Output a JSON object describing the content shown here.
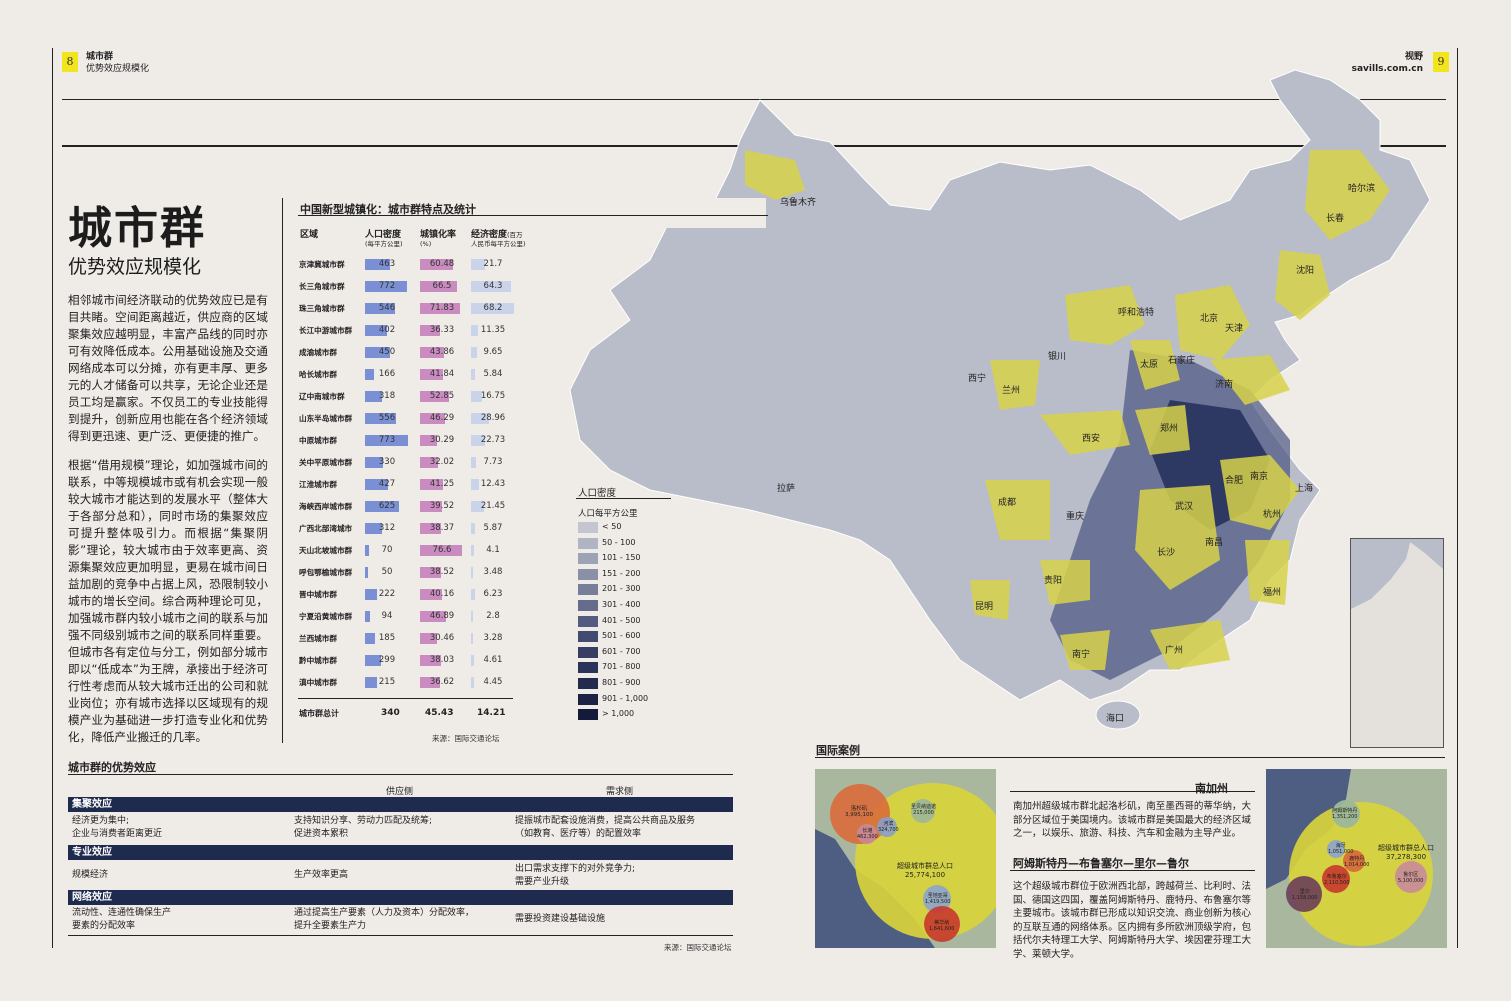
{
  "header": {
    "left_page_number": "8",
    "left_section": "城市群",
    "left_subsection": "优势效应规模化",
    "right_section": "视野",
    "right_site": "savills.com.cn",
    "right_page_number": "9"
  },
  "article": {
    "title": "城市群",
    "subtitle": "优势效应规模化",
    "paragraph_1": "相邻城市间经济联动的优势效应已是有目共睹。空间距离越近，供应商的区域聚集效应越明显，丰富产品线的同时亦可有效降低成本。公用基础设施及交通网络成本可以分摊，亦有更丰厚、更多元的人才储备可以共享，无论企业还是员工均是赢家。不仅员工的专业技能得到提升，创新应用也能在各个经济领域得到更迅速、更广泛、更便捷的推广。",
    "paragraph_2": "根据“借用规模”理论，如加强城市间的联系，中等规模城市或有机会实现一般较大城市才能达到的发展水平（整体大于各部分总和），同时市场的集聚效应可提升整体吸引力。而根据“集聚阴影”理论，较大城市由于效率更高、资源集聚效应更加明显，更易在城市间日益加剧的竞争中占据上风，恐限制较小城市的增长空间。综合两种理论可见，加强城市群内较小城市之间的联系与加强不同级别城市之间的联系同样重要。但城市各有定位与分工，例如部分城市即以“低成本”为王牌，承接出于经济可行性考虑而从较大城市迁出的公司和就业岗位；亦有城市选择以区域现有的规模产业为基础进一步打造专业化和优势化，降低产业搬迁的几率。"
  },
  "stats_table": {
    "title": "中国新型城镇化：城市群特点及统计",
    "col_region": "区域",
    "col_density": "人口密度",
    "col_density_unit": "(每平方公里)",
    "col_urban": "城镇化率",
    "col_urban_unit": "(%)",
    "col_econ": "经济密度",
    "col_econ_unit_a": "(百万",
    "col_econ_unit_b": "人民币每平方公里)",
    "rows": [
      {
        "name": "京津冀城市群",
        "density": "463",
        "urban": "60.48",
        "econ": "21.7",
        "d": 463,
        "u": 60.48,
        "e": 21.7
      },
      {
        "name": "长三角城市群",
        "density": "772",
        "urban": "66.5",
        "econ": "64.3",
        "d": 772,
        "u": 66.5,
        "e": 64.3
      },
      {
        "name": "珠三角城市群",
        "density": "546",
        "urban": "71.83",
        "econ": "68.2",
        "d": 546,
        "u": 71.83,
        "e": 68.2
      },
      {
        "name": "长江中游城市群",
        "density": "402",
        "urban": "36.33",
        "econ": "11.35",
        "d": 402,
        "u": 36.33,
        "e": 11.35
      },
      {
        "name": "成渝城市群",
        "density": "450",
        "urban": "43.86",
        "econ": "9.65",
        "d": 450,
        "u": 43.86,
        "e": 9.65
      },
      {
        "name": "哈长城市群",
        "density": "166",
        "urban": "41.84",
        "econ": "5.84",
        "d": 166,
        "u": 41.84,
        "e": 5.84
      },
      {
        "name": "辽中南城市群",
        "density": "318",
        "urban": "52.85",
        "econ": "16.75",
        "d": 318,
        "u": 52.85,
        "e": 16.75
      },
      {
        "name": "山东半岛城市群",
        "density": "556",
        "urban": "46.29",
        "econ": "28.96",
        "d": 556,
        "u": 46.29,
        "e": 28.96
      },
      {
        "name": "中原城市群",
        "density": "773",
        "urban": "30.29",
        "econ": "22.73",
        "d": 773,
        "u": 30.29,
        "e": 22.73
      },
      {
        "name": "关中平原城市群",
        "density": "330",
        "urban": "32.02",
        "econ": "7.73",
        "d": 330,
        "u": 32.02,
        "e": 7.73
      },
      {
        "name": "江淮城市群",
        "density": "427",
        "urban": "41.25",
        "econ": "12.43",
        "d": 427,
        "u": 41.25,
        "e": 12.43
      },
      {
        "name": "海峡西岸城市群",
        "density": "625",
        "urban": "39.52",
        "econ": "21.45",
        "d": 625,
        "u": 39.52,
        "e": 21.45
      },
      {
        "name": "广西北部湾城市",
        "density": "312",
        "urban": "38.37",
        "econ": "5.87",
        "d": 312,
        "u": 38.37,
        "e": 5.87
      },
      {
        "name": "天山北坡城市群",
        "density": "70",
        "urban": "76.6",
        "econ": "4.1",
        "d": 70,
        "u": 76.6,
        "e": 4.1
      },
      {
        "name": "呼包鄂榆城市群",
        "density": "50",
        "urban": "38.52",
        "econ": "3.48",
        "d": 50,
        "u": 38.52,
        "e": 3.48
      },
      {
        "name": "晋中城市群",
        "density": "222",
        "urban": "40.16",
        "econ": "6.23",
        "d": 222,
        "u": 40.16,
        "e": 6.23
      },
      {
        "name": "宁夏沿黄城市群",
        "density": "94",
        "urban": "46.89",
        "econ": "2.8",
        "d": 94,
        "u": 46.89,
        "e": 2.8
      },
      {
        "name": "兰西城市群",
        "density": "185",
        "urban": "30.46",
        "econ": "3.28",
        "d": 185,
        "u": 30.46,
        "e": 3.28
      },
      {
        "name": "黔中城市群",
        "density": "299",
        "urban": "38.03",
        "econ": "4.61",
        "d": 299,
        "u": 38.03,
        "e": 4.61
      },
      {
        "name": "滇中城市群",
        "density": "215",
        "urban": "36.62",
        "econ": "4.45",
        "d": 215,
        "u": 36.62,
        "e": 4.45
      }
    ],
    "total_label": "城市群总计",
    "total_density": "340",
    "total_urban": "45.43",
    "total_econ": "14.21",
    "source": "来源：国际交通论坛",
    "colors": {
      "density": "#7b8fd4",
      "urban": "#c98bc0",
      "econ": "#c9d3ea"
    }
  },
  "legend": {
    "title": "人口密度",
    "unit": "人口每平方公里",
    "items": [
      {
        "label": "< 50",
        "color": "#c3c6d1"
      },
      {
        "label": "50 - 100",
        "color": "#b0b4c3"
      },
      {
        "label": "101 - 150",
        "color": "#9da2b5"
      },
      {
        "label": "151 - 200",
        "color": "#8a90a8"
      },
      {
        "label": "201 - 300",
        "color": "#777e9a"
      },
      {
        "label": "301 - 400",
        "color": "#656c8c"
      },
      {
        "label": "401 - 500",
        "color": "#535b7e"
      },
      {
        "label": "501 - 600",
        "color": "#434b70"
      },
      {
        "label": "601 - 700",
        "color": "#363e64"
      },
      {
        "label": "701 - 800",
        "color": "#2b3358"
      },
      {
        "label": "801 - 900",
        "color": "#222a4e"
      },
      {
        "label": "901 - 1,000",
        "color": "#1b2245"
      },
      {
        "label": "> 1,000",
        "color": "#141a3a"
      }
    ]
  },
  "map": {
    "cities": [
      "乌鲁木齐",
      "哈尔滨",
      "长春",
      "沈阳",
      "呼和浩特",
      "北京",
      "天津",
      "银川",
      "太原",
      "石家庄",
      "西宁",
      "兰州",
      "济南",
      "西安",
      "郑州",
      "拉萨",
      "合肥",
      "南京",
      "上海",
      "成都",
      "重庆",
      "武汉",
      "杭州",
      "长沙",
      "南昌",
      "贵阳",
      "福州",
      "昆明",
      "南宁",
      "广州",
      "海口"
    ],
    "colors": {
      "land": "#b9bcc9",
      "cluster": "#d7d24a",
      "dense": "#1e2a55"
    }
  },
  "advantages": {
    "title": "城市群的优势效应",
    "col_supply": "供应侧",
    "col_demand": "需求侧",
    "sections": [
      {
        "name": "集聚效应",
        "left": "经济更为集中;\n企业与消费者距离更近",
        "supply": "支持知识分享、劳动力匹配及统筹;\n促进资本累积",
        "demand": "提振城市配套设施消费，提高公共商品及服务\n（如教育、医疗等）的配置效率"
      },
      {
        "name": "专业效应",
        "left": "规模经济",
        "supply": "生产效率更高",
        "demand": "出口需求支撑下的对外竞争力;\n需要产业升级"
      },
      {
        "name": "网络效应",
        "left": "流动性、连通性确保生产\n要素的分配效率",
        "supply": "通过提高生产要素（人力及资本）分配效率，\n提升全要素生产力",
        "demand": "需要投资建设基础设施"
      }
    ],
    "source": "来源：国际交通论坛"
  },
  "international": {
    "title": "国际案例",
    "socal_title": "南加州",
    "socal_body": "南加州超级城市群北起洛杉矶，南至墨西哥的蒂华纳，大部分区域位于美国境内。该城市群是美国最大的经济区域之一，以娱乐、旅游、科技、汽车和金融为主导产业。",
    "ams_title": "阿姆斯特丹—布鲁塞尔—里尔—鲁尔",
    "ams_body": "这个超级城市群位于欧洲西北部，跨越荷兰、比利时、法国、德国这四国，覆盖阿姆斯特丹、鹿特丹、布鲁塞尔等主要城市。该城市群已形成以知识交流、商业创新为核心的互联互通的网络体系。区内拥有多所欧洲顶级学府，包括代尔夫特理工大学、阿姆斯特丹大学、埃因霍芬理工大学、莱顿大学。",
    "socal_total_label": "超级城市群总人口",
    "socal_total": "25,774,100",
    "ams_total_label": "超级城市群总人口",
    "ams_total": "37,278,300",
    "socal_bubbles": [
      {
        "name": "洛杉矶",
        "value": "3,995,100"
      },
      {
        "name": "圣贝纳迪诺",
        "value": "215,000"
      },
      {
        "name": "长滩",
        "value": "462,300"
      },
      {
        "name": "河滨",
        "value": "324,700"
      },
      {
        "name": "圣地亚哥",
        "value": "1,419,500"
      },
      {
        "name": "蒂华纳",
        "value": "1,641,600"
      }
    ],
    "ams_bubbles": [
      {
        "name": "阿姆斯特丹",
        "value": "1,351,200"
      },
      {
        "name": "海牙",
        "value": "1,051,000"
      },
      {
        "name": "鹿特丹",
        "value": "1,014,000"
      },
      {
        "name": "布鲁塞尔",
        "value": "2,110,500"
      },
      {
        "name": "鲁尔区",
        "value": "5,100,000"
      },
      {
        "name": "里尔",
        "value": "1,158,000"
      }
    ]
  }
}
